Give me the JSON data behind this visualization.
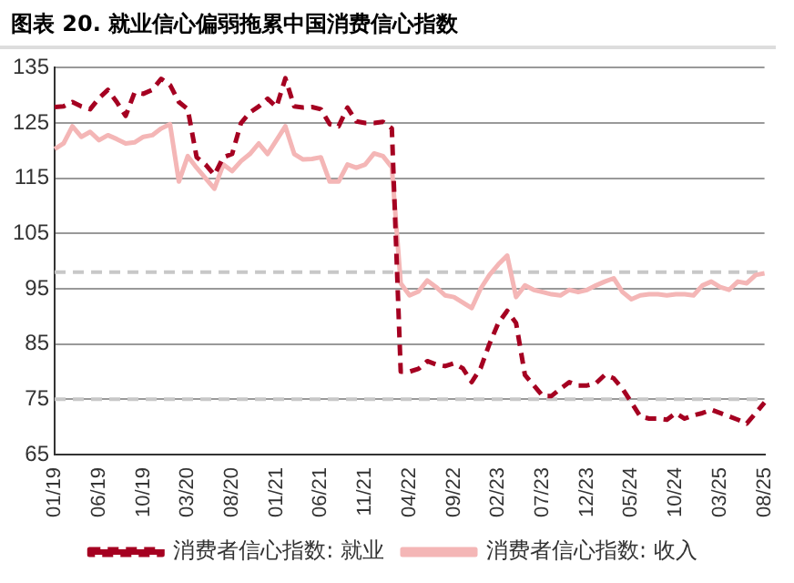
{
  "chart_data": {
    "type": "line",
    "title": "图表 20. 就业信心偏弱拖累中国消费信心指数",
    "categories": [
      "01/19",
      null,
      null,
      null,
      null,
      "06/19",
      null,
      null,
      null,
      null,
      "10/19",
      null,
      null,
      null,
      null,
      "03/20",
      null,
      null,
      null,
      null,
      "08/20",
      null,
      null,
      null,
      null,
      "01/21",
      null,
      null,
      null,
      null,
      "06/21",
      null,
      null,
      null,
      null,
      "11/21",
      null,
      null,
      null,
      null,
      "04/22",
      null,
      null,
      null,
      null,
      "09/22",
      null,
      null,
      null,
      null,
      "02/23",
      null,
      null,
      null,
      null,
      "07/23",
      null,
      null,
      null,
      null,
      "12/23",
      null,
      null,
      null,
      null,
      "05/24",
      null,
      null,
      null,
      null,
      "10/24",
      null,
      null,
      null,
      null,
      "03/25",
      null,
      null,
      null,
      null,
      "08/25"
    ],
    "series": [
      {
        "name": "消费者信心指数: 就业",
        "color": "#a50021",
        "line_style": "dashed",
        "values": [
          127.9,
          128,
          128.8,
          128,
          127.5,
          129.5,
          131,
          128.8,
          126.3,
          130.5,
          130.3,
          131,
          133,
          131.9,
          128.8,
          127.5,
          118.8,
          117.5,
          115.6,
          118.8,
          119.4,
          125,
          126.9,
          128,
          129.4,
          127.9,
          133.1,
          128,
          127.8,
          127.9,
          127.5,
          124.8,
          124.4,
          127.8,
          125.3,
          125,
          125,
          125.2,
          124,
          80,
          80,
          80.5,
          81.9,
          81.3,
          81,
          81.5,
          80.6,
          78.1,
          80.6,
          85,
          88.8,
          91,
          88.8,
          79.4,
          77.5,
          75.6,
          75.6,
          76.9,
          78.1,
          77.5,
          77.5,
          77.9,
          79.4,
          78.8,
          76.9,
          74.4,
          71.9,
          71.5,
          71.5,
          71.3,
          72.5,
          71.5,
          72.1,
          72.5,
          73.1,
          72.5,
          71.9,
          71.3,
          70.6,
          72.5,
          74.4
        ]
      },
      {
        "name": "消费者信心指数: 收入",
        "color": "#f4b6b6",
        "line_style": "solid",
        "values": [
          120.3,
          121.3,
          124.4,
          122.5,
          123.4,
          121.9,
          122.8,
          122.1,
          121.3,
          121.5,
          122.5,
          122.8,
          124,
          124.8,
          114.4,
          119,
          116.9,
          115,
          113.1,
          117.5,
          116.3,
          118.1,
          119.4,
          121.3,
          119.4,
          121.9,
          124.4,
          119.4,
          118.4,
          118.5,
          118.8,
          114.4,
          114.4,
          117.5,
          116.9,
          117.5,
          119.5,
          119,
          117,
          96,
          93.8,
          94.5,
          96.5,
          95.3,
          93.8,
          93.5,
          92.5,
          91.5,
          95,
          97.5,
          99.4,
          101,
          93.5,
          95.6,
          94.8,
          94.4,
          94,
          93.8,
          94.8,
          94.4,
          94.8,
          95.6,
          96.3,
          96.9,
          94.4,
          93.1,
          93.8,
          94,
          94,
          93.8,
          94,
          94,
          93.8,
          95.6,
          96.3,
          95.3,
          94.8,
          96.3,
          96,
          97.5,
          97.8
        ]
      }
    ],
    "ylim": [
      65,
      135
    ],
    "yticks": [
      65,
      75,
      85,
      95,
      105,
      115,
      125,
      135
    ],
    "ref_lines": [
      {
        "axis": "y",
        "value": 98,
        "color": "#c8c8c8",
        "line_style": "dashed"
      },
      {
        "axis": "y",
        "value": 75,
        "color": "#c8c8c8",
        "line_style": "dashed"
      }
    ],
    "grid": "y",
    "legend": "bottom",
    "marker": "none"
  }
}
